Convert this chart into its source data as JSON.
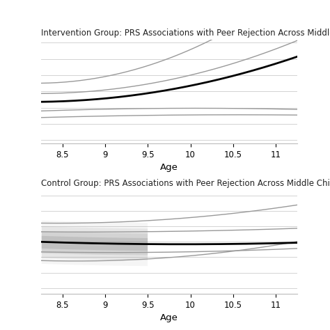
{
  "title_top": "Intervention Group: PRS Associations with Peer Rejection Across Middle Childhood",
  "title_bottom": "Control Group: PRS Associations with Peer Rejection Across Middle Childhood",
  "xlabel": "Age",
  "x_min": 8.25,
  "x_max": 11.25,
  "xticks": [
    8.5,
    9.0,
    9.5,
    10.0,
    10.5,
    11.0
  ],
  "xtick_labels": [
    "8.5",
    "9",
    "9.5",
    "10",
    "10.5",
    "11"
  ],
  "bg_color": "#ffffff",
  "line_color_black": "#000000",
  "line_color_gray": "#999999",
  "title_fontsize": 8.5,
  "tick_fontsize": 8.5,
  "label_fontsize": 9.5
}
